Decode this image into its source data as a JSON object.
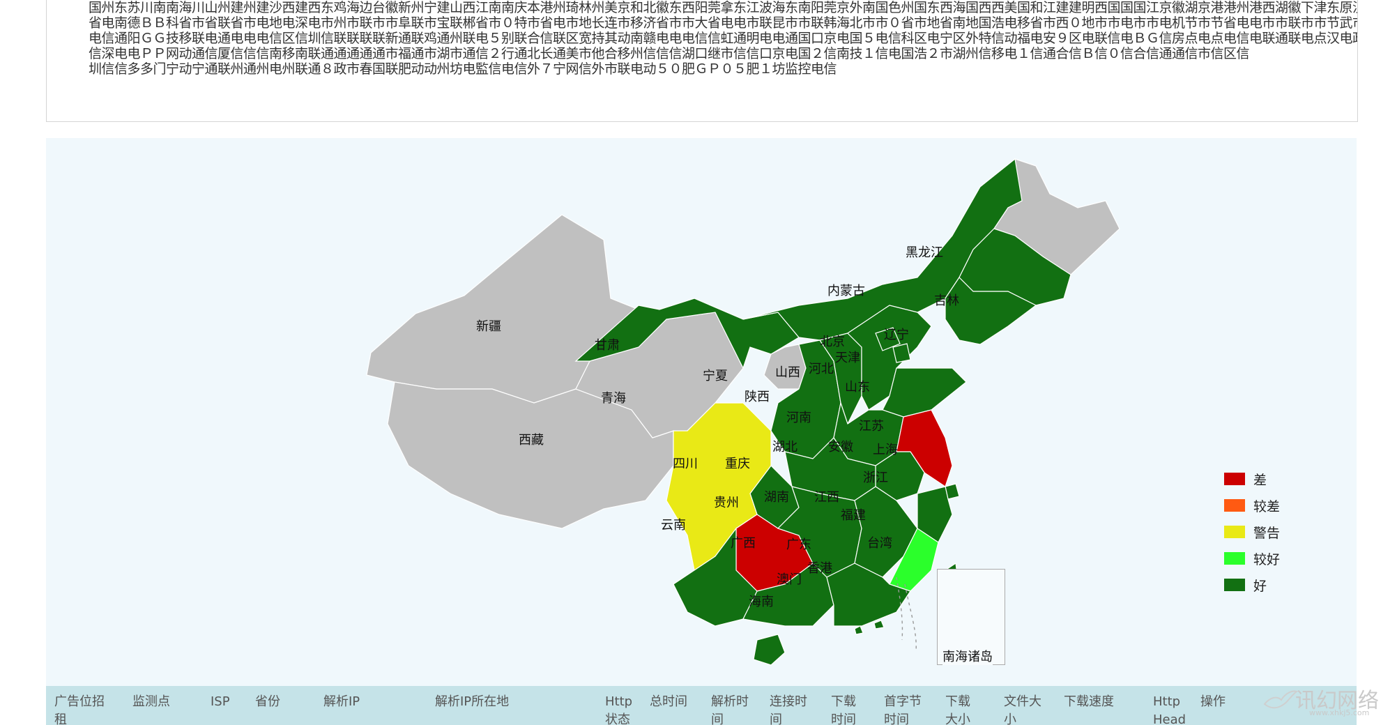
{
  "probe_table": {
    "rows": [
      "国州东苏川南南海川山州建州建沙西建西东鸡海边台徽新州宁建山西江南南庆本港州琦林州美京和北徽东西阳莞拿东江波海东南阳莞京外南国色州国东西海国西西美国和江建建明西国国国江京徽湖京港港州港西湖徽下津东原汉港北州港肃",
      "省电南德ＢＢ科省市省联省市电地电深电市州市联市市阜联市宝联郴省市０特市省电市地长连市移济省市市大省电电市联昆市市联韩海北市市０省市地省南地国浩电移省市西０地市市电市市电机节市节省电电市市联市市节武市行省",
      "电信通阳ＧＧ技移联电通电电电信区信圳信联联联联新通联鸡通州联电５别联合信联区宽持其动南赣电电电信信虹通明电电通国口京电国５电信科区电宁区外特信动福电安９区电联信电ＢＧ信房点电点电信电联通联电点汉电政电",
      "信深电电ＰＰ网动通信厦信信信南移南联通通通通通市福通市湖市通信２行通北长通美市他合移州信信信湖口继市信信口京电国２信南技１信电国浩２市湖州信移电１信通合信Ｂ信０信合信通通信市信区信",
      "圳信信多多门宁动宁通联州通州电州联通８政市春国联肥动动州坊电監信电信外７宁网信外市联电动５０肥ＧＰ０５肥１坊监控电信"
    ]
  },
  "map": {
    "legend": [
      {
        "label": "差",
        "color": "#cc0000"
      },
      {
        "label": "较差",
        "color": "#ff5a12"
      },
      {
        "label": "警告",
        "color": "#e9e916"
      },
      {
        "label": "较好",
        "color": "#2bff2b"
      },
      {
        "label": "好",
        "color": "#127012"
      }
    ],
    "status_colors": {
      "good": "#127012",
      "fair": "#2bff2b",
      "warn": "#e9e916",
      "bad": "#cc0000",
      "none": "#c0c0c0"
    },
    "provinces": [
      {
        "name": "黑龙江",
        "status": "none"
      },
      {
        "name": "吉林",
        "status": "good"
      },
      {
        "name": "辽宁",
        "status": "good"
      },
      {
        "name": "内蒙古",
        "status": "good"
      },
      {
        "name": "新疆",
        "status": "none"
      },
      {
        "name": "甘肃",
        "status": "good"
      },
      {
        "name": "北京",
        "status": "good"
      },
      {
        "name": "天津",
        "status": "good"
      },
      {
        "name": "宁夏",
        "status": "none"
      },
      {
        "name": "山西",
        "status": "good"
      },
      {
        "name": "河北",
        "status": "good"
      },
      {
        "name": "山东",
        "status": "good"
      },
      {
        "name": "青海",
        "status": "none"
      },
      {
        "name": "陕西",
        "status": "good"
      },
      {
        "name": "河南",
        "status": "good"
      },
      {
        "name": "江苏",
        "status": "bad"
      },
      {
        "name": "西藏",
        "status": "none"
      },
      {
        "name": "四川",
        "status": "warn"
      },
      {
        "name": "重庆",
        "status": "good"
      },
      {
        "name": "湖北",
        "status": "good"
      },
      {
        "name": "安徽",
        "status": "good"
      },
      {
        "name": "上海",
        "status": "good"
      },
      {
        "name": "浙江",
        "status": "good"
      },
      {
        "name": "贵州",
        "status": "bad"
      },
      {
        "name": "湖南",
        "status": "good"
      },
      {
        "name": "江西",
        "status": "good"
      },
      {
        "name": "福建",
        "status": "fair"
      },
      {
        "name": "云南",
        "status": "good"
      },
      {
        "name": "广西",
        "status": "good"
      },
      {
        "name": "广东",
        "status": "good"
      },
      {
        "name": "台湾",
        "status": "good"
      },
      {
        "name": "香港",
        "status": "good"
      },
      {
        "name": "澳门",
        "status": "good"
      },
      {
        "name": "海南",
        "status": "good"
      }
    ],
    "inset_label": "南海诸岛"
  },
  "result_table": {
    "columns": [
      "广告位招租",
      "监测点",
      "ISP",
      "省份",
      "解析IP",
      "解析IP所在地",
      "Http状态",
      "总时间",
      "解析时间",
      "连接时间",
      "下载时间",
      "首字节时间",
      "下载大小",
      "文件大小",
      "下载速度",
      "Http Head",
      "操作"
    ]
  },
  "watermark": {
    "text": "讯幻网络",
    "sub": "www.xhkj5.com"
  }
}
